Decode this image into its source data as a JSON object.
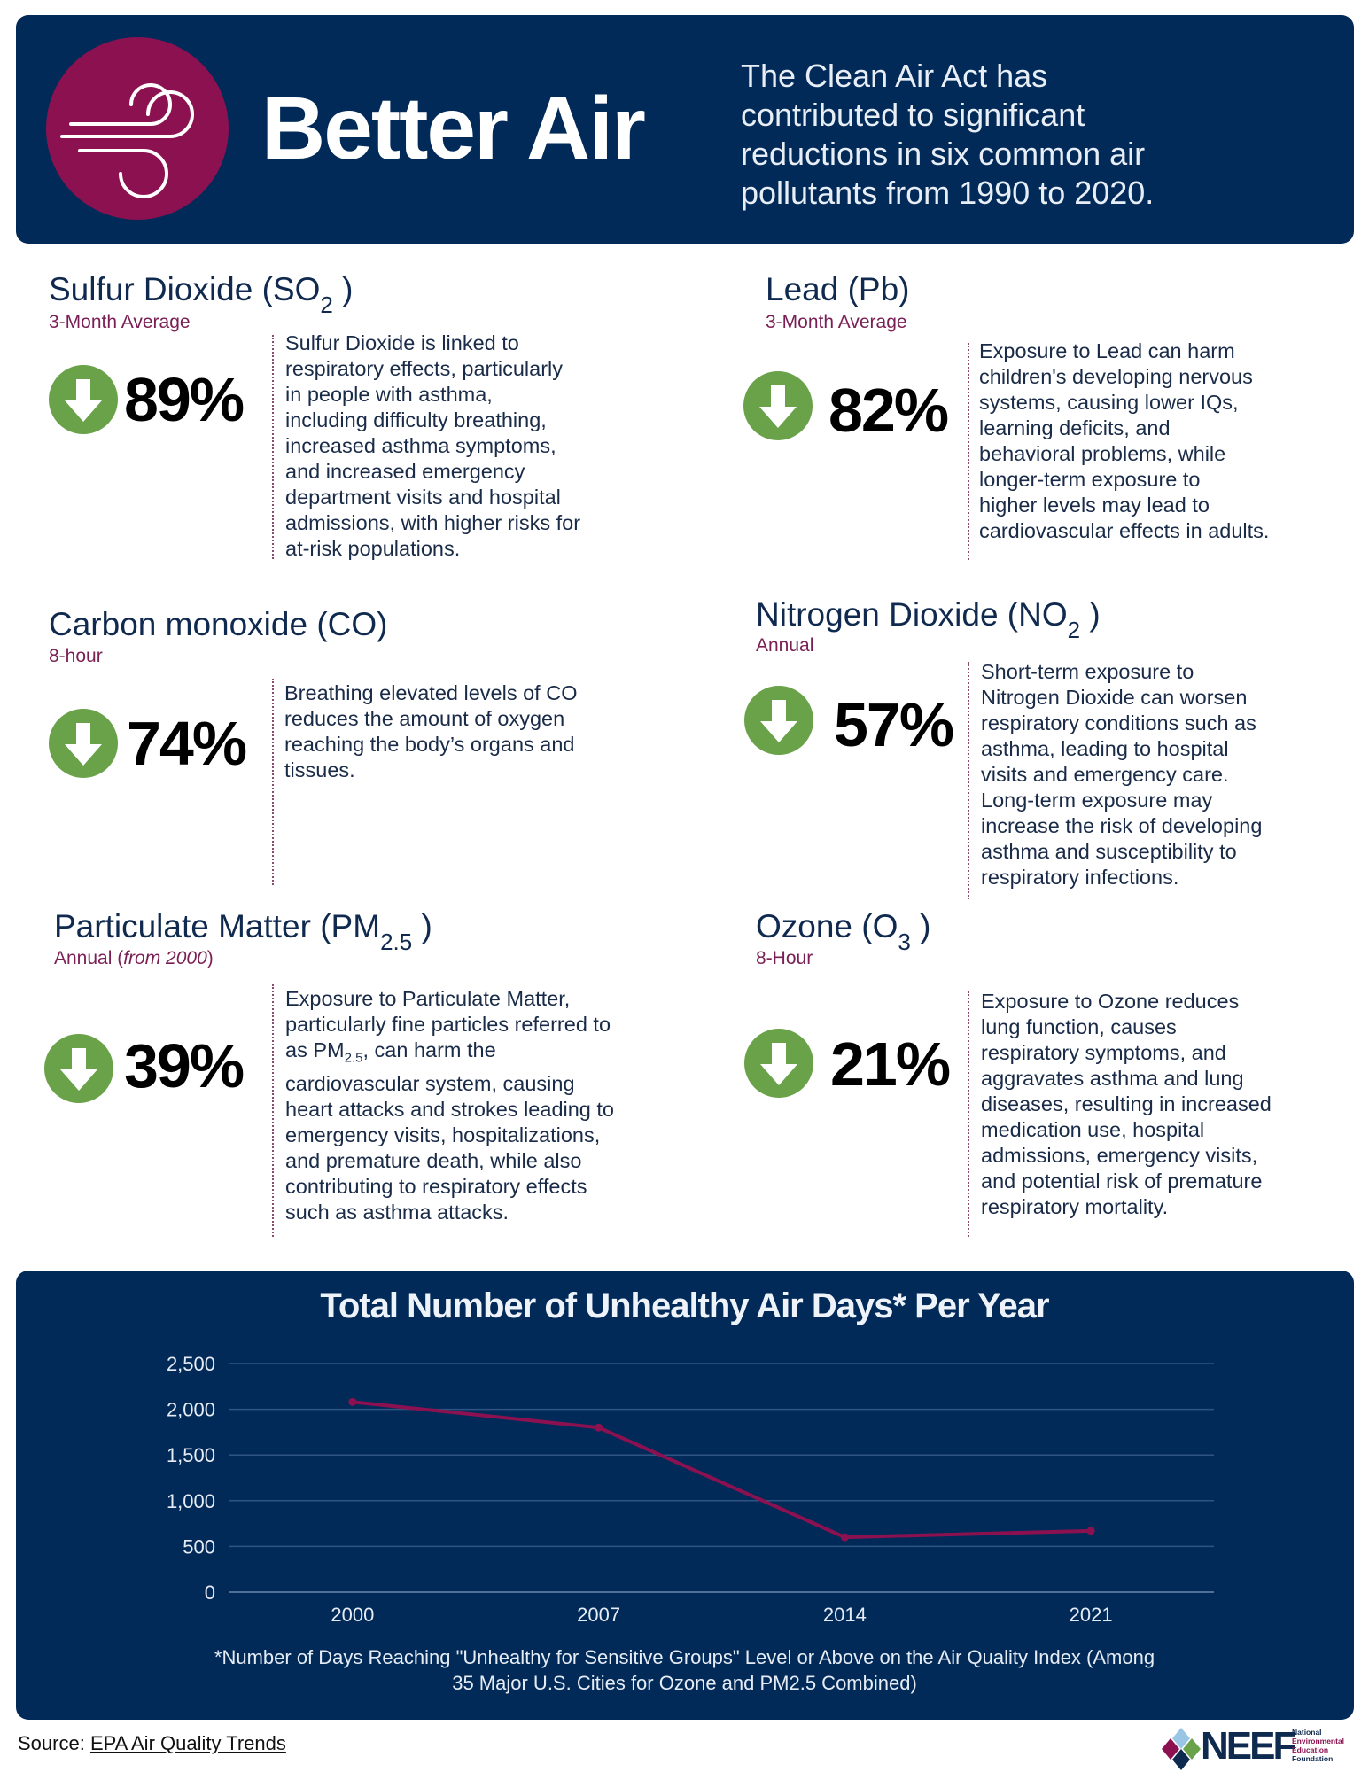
{
  "header": {
    "title": "Better Air",
    "icon": "wind-icon",
    "intro": "The Clean Air Act has\ncontributed to significant\nreductions in six common air\npollutants from 1990 to 2020."
  },
  "colors": {
    "navy": "#012a58",
    "maroon": "#8b1150",
    "green": "#6aa24a"
  },
  "pollutants": [
    {
      "title": "Sulfur Dioxide (SO",
      "sub": "2",
      "close": " )",
      "period": "3-Month Average",
      "period_note": "",
      "change": "89%",
      "direction": "down",
      "text": "Sulfur Dioxide is linked to\nrespiratory effects, particularly\nin people with asthma,\nincluding difficulty breathing,\nincreased asthma symptoms,\nand increased emergency\ndepartment visits and hospital\nadmissions, with higher risks for\nat-risk populations."
    },
    {
      "title": "Lead (Pb)",
      "sub": "",
      "close": "",
      "period": "3-Month Average",
      "period_note": "",
      "change": "82%",
      "direction": "down",
      "text": "Exposure to Lead can harm\nchildren's developing nervous\nsystems, causing lower IQs,\nlearning deficits, and\nbehavioral problems, while\nlonger-term exposure to\nhigher levels may lead to\ncardiovascular effects in adults."
    },
    {
      "title": "Carbon monoxide (CO)",
      "sub": "",
      "close": "",
      "period": "8-hour",
      "period_note": "",
      "change": "74%",
      "direction": "down",
      "text": "Breathing elevated levels of CO\nreduces the amount of oxygen\nreaching the body’s organs and\ntissues."
    },
    {
      "title": "Nitrogen Dioxide (NO",
      "sub": "2",
      "close": " )",
      "period": "Annual",
      "period_note": "",
      "change": "57%",
      "direction": "down",
      "text": "Short-term exposure to\nNitrogen Dioxide can worsen\nrespiratory conditions such as\nasthma, leading to hospital\nvisits and emergency care.\nLong-term exposure may\nincrease the risk of developing\nasthma and susceptibility to\nrespiratory infections."
    },
    {
      "title": "Particulate Matter (PM",
      "sub": "2.5",
      "close": " )",
      "period": "Annual  (",
      "period_note": "from 2000",
      "period_close": ")",
      "change": "39%",
      "direction": "down",
      "text_a": "Exposure to Particulate Matter,\nparticularly fine particles referred to\nas PM",
      "text_sub": "2.5",
      "text_b": ", can harm the\ncardiovascular system, causing\nheart attacks and strokes leading to\nemergency visits, hospitalizations,\nand premature death, while also\ncontributing to respiratory effects\nsuch as asthma attacks."
    },
    {
      "title": "Ozone (O",
      "sub": "3",
      "close": " )",
      "period": "8-Hour",
      "period_note": "",
      "change": "21%",
      "direction": "down",
      "text": "Exposure to Ozone reduces\nlung function, causes\nrespiratory symptoms, and\naggravates asthma and lung\ndiseases, resulting in increased\nmedication use, hospital\nadmissions, emergency visits,\nand potential risk of premature\nrespiratory mortality."
    }
  ],
  "chart_data": {
    "type": "line",
    "title": "Total Number of Unhealthy Air Days* Per Year",
    "categories": [
      "2000",
      "2007",
      "2014",
      "2021"
    ],
    "values": [
      2080,
      1800,
      600,
      670
    ],
    "ylim": [
      0,
      2500
    ],
    "yticks": [
      0,
      500,
      1000,
      1500,
      2000,
      2500
    ],
    "ytick_labels": [
      "0",
      "500",
      "1,000",
      "1,500",
      "2,000",
      "2,500"
    ],
    "grid": true,
    "line_color": "#8b1150",
    "footnote_line1": "*Number of Days Reaching \"Unhealthy for Sensitive Groups\" Level or Above on the Air Quality Index (Among",
    "footnote_line2": "35 Major U.S. Cities for Ozone and PM2.5 Combined)"
  },
  "footer": {
    "source_label": "Source: ",
    "source_link": "EPA Air Quality Trends",
    "logo_text": "NEEF",
    "logo_sub": [
      "National",
      "Environmental",
      "Education",
      "Foundation"
    ]
  }
}
